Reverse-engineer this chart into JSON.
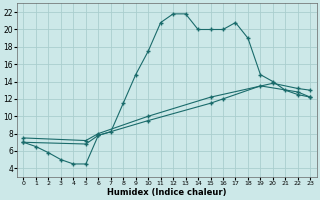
{
  "xlabel": "Humidex (Indice chaleur)",
  "bg_color": "#cce8e8",
  "grid_color": "#aacece",
  "line_color": "#1a6b6b",
  "xlim": [
    -0.5,
    23.5
  ],
  "ylim": [
    3,
    23
  ],
  "xticks": [
    0,
    1,
    2,
    3,
    4,
    5,
    6,
    7,
    8,
    9,
    10,
    11,
    12,
    13,
    14,
    15,
    16,
    17,
    18,
    19,
    20,
    21,
    22,
    23
  ],
  "yticks": [
    4,
    6,
    8,
    10,
    12,
    14,
    16,
    18,
    20,
    22
  ],
  "line1_x": [
    0,
    1,
    2,
    3,
    4,
    5,
    6,
    7,
    8,
    9,
    10,
    11,
    12,
    13,
    14,
    15,
    16,
    17,
    18,
    19,
    20,
    21,
    22,
    23
  ],
  "line1_y": [
    7.0,
    6.5,
    5.8,
    5.0,
    4.5,
    4.5,
    7.8,
    8.2,
    11.5,
    14.8,
    17.5,
    20.8,
    21.8,
    21.8,
    20.0,
    20.0,
    20.0,
    20.8,
    19.0,
    14.8,
    14.0,
    13.0,
    12.5,
    12.2
  ],
  "line2_x": [
    0,
    5,
    6,
    10,
    15,
    16,
    19,
    22,
    23
  ],
  "line2_y": [
    7.0,
    6.8,
    7.8,
    9.5,
    11.5,
    12.0,
    13.5,
    12.8,
    12.2
  ],
  "line3_x": [
    0,
    5,
    6,
    10,
    15,
    20,
    22,
    23
  ],
  "line3_y": [
    7.5,
    7.2,
    8.0,
    10.0,
    12.2,
    13.8,
    13.2,
    13.0
  ]
}
